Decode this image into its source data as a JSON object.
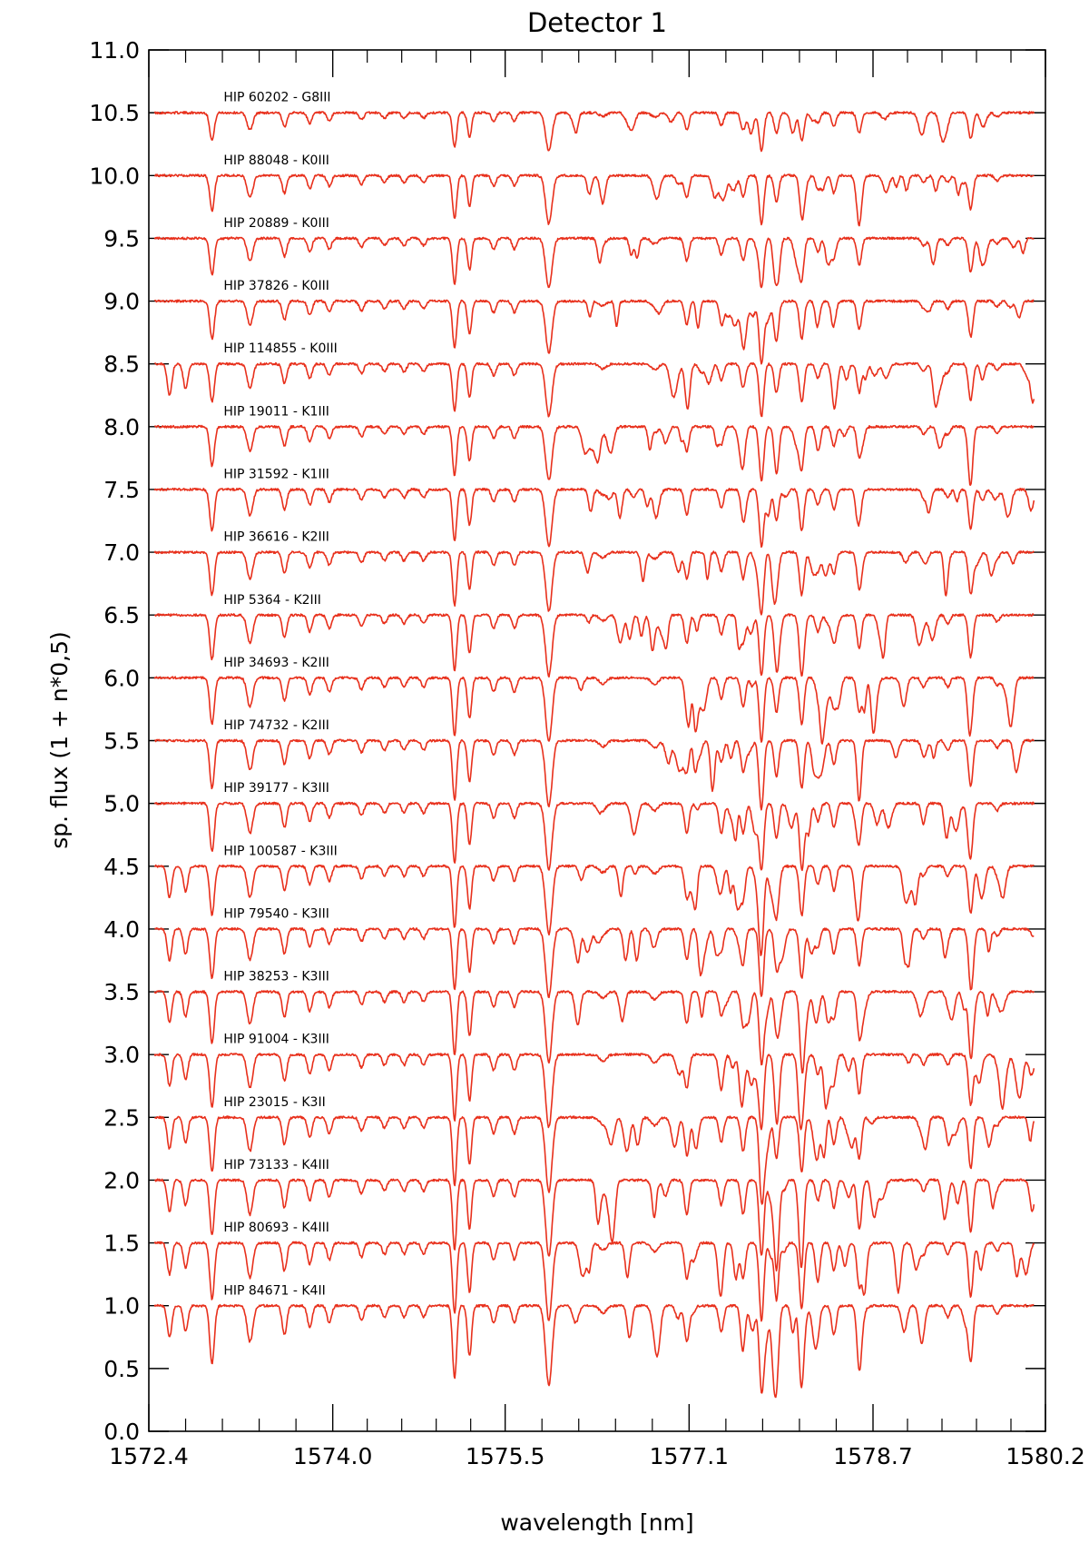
{
  "chart_data": {
    "type": "line",
    "title": "Detector 1",
    "xlabel": "wavelength [nm]",
    "ylabel": "sp. flux (1 + n*0,5)",
    "xlim": [
      1572.4,
      1580.2
    ],
    "ylim": [
      0.0,
      11.0
    ],
    "x_ticks": [
      1572.4,
      1574.0,
      1575.5,
      1577.1,
      1578.7,
      1580.2
    ],
    "x_tick_labels": [
      "1572.4",
      "1574.0",
      "1575.5",
      "1577.1",
      "1578.7",
      "1580.2"
    ],
    "y_ticks": [
      0.0,
      0.5,
      1.0,
      1.5,
      2.0,
      2.5,
      3.0,
      3.5,
      4.0,
      4.5,
      5.0,
      5.5,
      6.0,
      6.5,
      7.0,
      7.5,
      8.0,
      8.5,
      9.0,
      9.5,
      10.0,
      10.5,
      11.0
    ],
    "y_tick_labels": [
      "0.0",
      "0.5",
      "1.0",
      "1.5",
      "2.0",
      "2.5",
      "3.0",
      "3.5",
      "4.0",
      "4.5",
      "5.0",
      "5.5",
      "6.0",
      "6.5",
      "7.0",
      "7.5",
      "8.0",
      "8.5",
      "9.0",
      "9.5",
      "10.0",
      "10.5",
      "11.0"
    ],
    "x_range_plotted": [
      1572.45,
      1580.1
    ],
    "grid": false,
    "line_color": "#e8301c",
    "absorption_lines": [
      {
        "x": 1572.95,
        "depth": 0.4,
        "width": 0.02
      },
      {
        "x": 1573.28,
        "depth": 0.25,
        "width": 0.025
      },
      {
        "x": 1573.58,
        "depth": 0.2,
        "width": 0.02
      },
      {
        "x": 1573.8,
        "depth": 0.15,
        "width": 0.02
      },
      {
        "x": 1573.97,
        "depth": 0.12,
        "width": 0.02
      },
      {
        "x": 1574.25,
        "depth": 0.1,
        "width": 0.02
      },
      {
        "x": 1574.45,
        "depth": 0.08,
        "width": 0.02
      },
      {
        "x": 1574.62,
        "depth": 0.08,
        "width": 0.02
      },
      {
        "x": 1574.79,
        "depth": 0.08,
        "width": 0.02
      },
      {
        "x": 1575.06,
        "depth": 0.5,
        "width": 0.018
      },
      {
        "x": 1575.19,
        "depth": 0.35,
        "width": 0.018
      },
      {
        "x": 1575.4,
        "depth": 0.12,
        "width": 0.02
      },
      {
        "x": 1575.58,
        "depth": 0.12,
        "width": 0.02
      },
      {
        "x": 1575.88,
        "depth": 0.55,
        "width": 0.028
      },
      {
        "x": 1576.35,
        "depth": 0.05,
        "width": 0.03
      },
      {
        "x": 1576.8,
        "depth": 0.06,
        "width": 0.03
      },
      {
        "x": 1577.08,
        "depth": 0.25,
        "width": 0.02
      },
      {
        "x": 1577.38,
        "depth": 0.18,
        "width": 0.02
      },
      {
        "x": 1577.57,
        "depth": 0.25,
        "width": 0.02
      },
      {
        "x": 1577.73,
        "depth": 0.55,
        "width": 0.02
      },
      {
        "x": 1577.86,
        "depth": 0.3,
        "width": 0.02
      },
      {
        "x": 1578.08,
        "depth": 0.4,
        "width": 0.02
      },
      {
        "x": 1578.22,
        "depth": 0.15,
        "width": 0.02
      },
      {
        "x": 1578.36,
        "depth": 0.2,
        "width": 0.02
      },
      {
        "x": 1578.58,
        "depth": 0.3,
        "width": 0.02
      },
      {
        "x": 1579.14,
        "depth": 0.08,
        "width": 0.02
      },
      {
        "x": 1579.35,
        "depth": 0.08,
        "width": 0.02
      },
      {
        "x": 1579.55,
        "depth": 0.38,
        "width": 0.02
      },
      {
        "x": 1579.78,
        "depth": 0.06,
        "width": 0.02
      }
    ],
    "series": [
      {
        "name": "HIP 60202 - G8III",
        "offset": 10.5,
        "strength": 0.55
      },
      {
        "name": "HIP 88048 - K0III",
        "offset": 10.0,
        "strength": 0.7
      },
      {
        "name": "HIP 20889 - K0III",
        "offset": 9.5,
        "strength": 0.72
      },
      {
        "name": "HIP 37826 - K0III",
        "offset": 9.0,
        "strength": 0.75
      },
      {
        "name": "HIP 114855 - K0III",
        "offset": 8.5,
        "strength": 0.76
      },
      {
        "name": "HIP 19011 - K1III",
        "offset": 8.0,
        "strength": 0.78
      },
      {
        "name": "HIP 31592 - K1III",
        "offset": 7.5,
        "strength": 0.82
      },
      {
        "name": "HIP 36616 - K2III",
        "offset": 7.0,
        "strength": 0.85
      },
      {
        "name": "HIP 5364 - K2III",
        "offset": 6.5,
        "strength": 0.88
      },
      {
        "name": "HIP 34693 - K2III",
        "offset": 6.0,
        "strength": 0.92
      },
      {
        "name": "HIP 74732 - K2III",
        "offset": 5.5,
        "strength": 0.95
      },
      {
        "name": "HIP 39177 - K3III",
        "offset": 5.0,
        "strength": 0.95
      },
      {
        "name": "HIP 100587 - K3III",
        "offset": 4.5,
        "strength": 0.98
      },
      {
        "name": "HIP 79540 - K3III",
        "offset": 4.0,
        "strength": 0.98
      },
      {
        "name": "HIP 38253 - K3III",
        "offset": 3.5,
        "strength": 1.02
      },
      {
        "name": "HIP 91004 - K3III",
        "offset": 3.0,
        "strength": 1.05
      },
      {
        "name": "HIP 23015 - K3II",
        "offset": 2.5,
        "strength": 1.08
      },
      {
        "name": "HIP 73133 - K4III",
        "offset": 2.0,
        "strength": 1.1
      },
      {
        "name": "HIP 80693 - K4III",
        "offset": 1.5,
        "strength": 1.12
      },
      {
        "name": "HIP 84671 - K4II",
        "offset": 1.0,
        "strength": 1.15
      }
    ]
  }
}
